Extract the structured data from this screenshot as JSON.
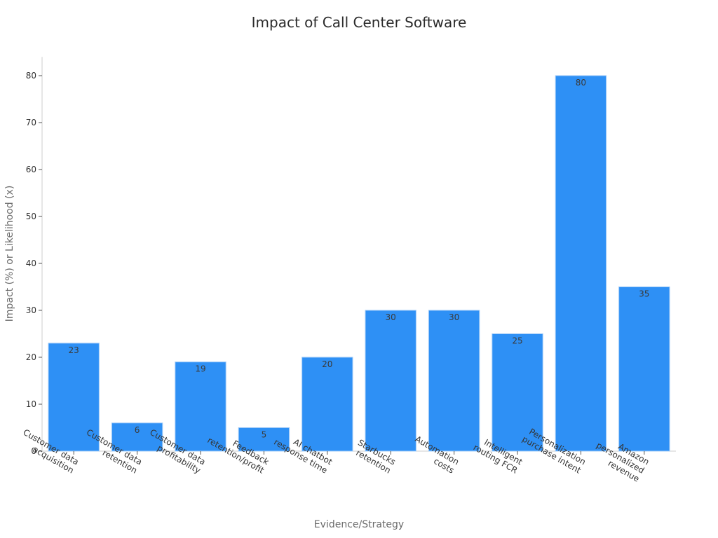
{
  "chart_data": {
    "type": "bar",
    "title": "Impact of Call Center Software",
    "xlabel": "Evidence/Strategy",
    "ylabel": "Impact (%) or Likelihood (x)",
    "ylim": [
      0,
      84
    ],
    "yticks": [
      0,
      10,
      20,
      30,
      40,
      50,
      60,
      70,
      80
    ],
    "grid": false,
    "categories": [
      "Customer data\nacquisition",
      "Customer data\nretention",
      "Customer data\nprofitability",
      "Feedback\nretention/profit",
      "AI chatbot\nresponse time",
      "Starbucks\nretention",
      "Automation\ncosts",
      "Intelligent\nrouting FCR",
      "Personalization\npurchase intent",
      "Amazon\npersonalized\nrevenue"
    ],
    "values": [
      23,
      6,
      19,
      5,
      20,
      30,
      30,
      25,
      80,
      35
    ],
    "data_labels": [
      "23",
      "6",
      "19",
      "5",
      "20",
      "30",
      "30",
      "25",
      "80",
      "35"
    ]
  },
  "colors": {
    "bar": "#2e90f5",
    "bar_edge": "#9cc8f7",
    "axis": "#cccccc",
    "tick_text": "#333333",
    "value_label": "#3a3a3a"
  }
}
